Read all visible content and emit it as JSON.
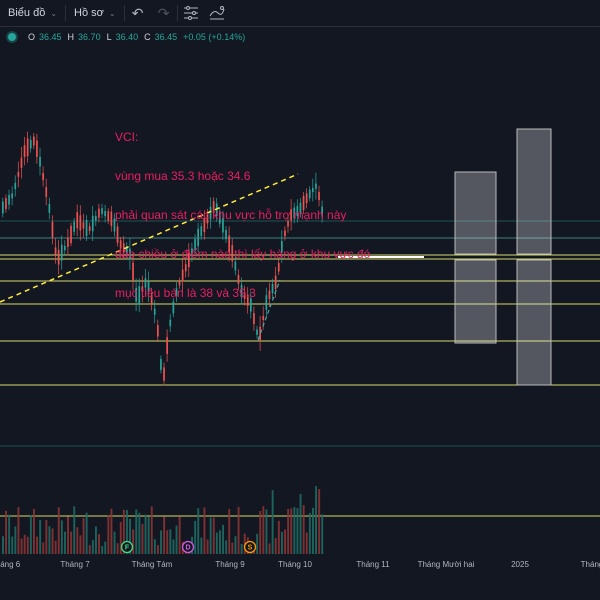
{
  "toolbar": {
    "chart_label": "Biểu đồ",
    "profile_label": "Hồ sơ"
  },
  "legend": {
    "o_label": "O",
    "o_value": "36.45",
    "h_label": "H",
    "h_value": "36.70",
    "l_label": "L",
    "l_value": "36.40",
    "c_label": "C",
    "c_value": "36.45",
    "change": "+0.05 (+0.14%)"
  },
  "annotation": {
    "lines": [
      "VCI:",
      "vùng mua 35.3 hoặc 34.6",
      "phải quan sát các khu vực hỗ trợ mạnh này",
      "đảo chiều ở điểm nào thì lấy hàng ở khu vực đó",
      "mục tiêu bán là 38 và 39.3"
    ]
  },
  "xaxis": {
    "labels": [
      "háng 6",
      "Tháng 7",
      "Tháng Tám",
      "Tháng 9",
      "Tháng 10",
      "Tháng 11",
      "Tháng Mười hai",
      "2025",
      "Tháng"
    ]
  },
  "markers": [
    "F",
    "D",
    "S"
  ],
  "colors": {
    "background": "#131722",
    "up": "#26a69a",
    "down": "#ef5350",
    "annotation": "#e91e63",
    "level_line": "#d4d96b",
    "trendline": "#ffeb3b"
  }
}
